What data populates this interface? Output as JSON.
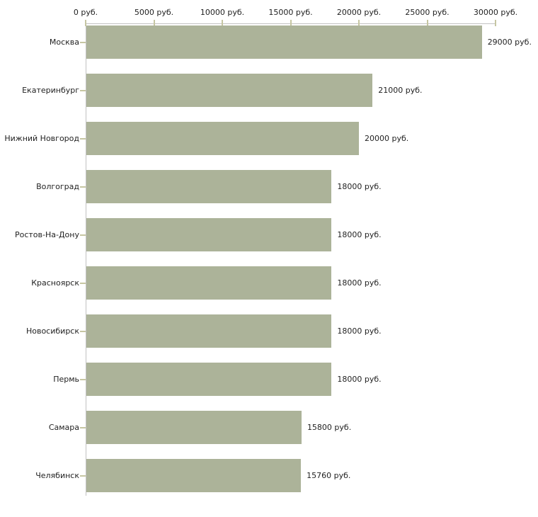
{
  "chart_data": {
    "type": "bar",
    "orientation": "horizontal",
    "title": "",
    "xlabel": "",
    "ylabel": "",
    "xlim": [
      0,
      30000
    ],
    "grid": false,
    "legend": "none",
    "categories": [
      "Москва",
      "Екатеринбург",
      "Нижний Новгород",
      "Волгоград",
      "Ростов-На-Дону",
      "Красноярск",
      "Новосибирск",
      "Пермь",
      "Самара",
      "Челябинск"
    ],
    "values": [
      29000,
      21000,
      20000,
      18000,
      18000,
      18000,
      18000,
      18000,
      15800,
      15760
    ],
    "value_labels": [
      "29000 руб.",
      "21000 руб.",
      "20000 руб.",
      "18000 руб.",
      "18000 руб.",
      "18000 руб.",
      "18000 руб.",
      "18000 руб.",
      "15800 руб.",
      "15760 руб."
    ],
    "x_ticks": [
      0,
      5000,
      10000,
      15000,
      20000,
      25000,
      30000
    ],
    "x_tick_labels": [
      "0 руб.",
      "5000 руб.",
      "10000 руб.",
      "15000 руб.",
      "20000 руб.",
      "25000 руб.",
      "30000 руб."
    ],
    "bar_color": "#acb399",
    "axis_color": "#c2c2c2",
    "tick_color": "#c6c6a2",
    "text_color": "#1f1f1f"
  }
}
